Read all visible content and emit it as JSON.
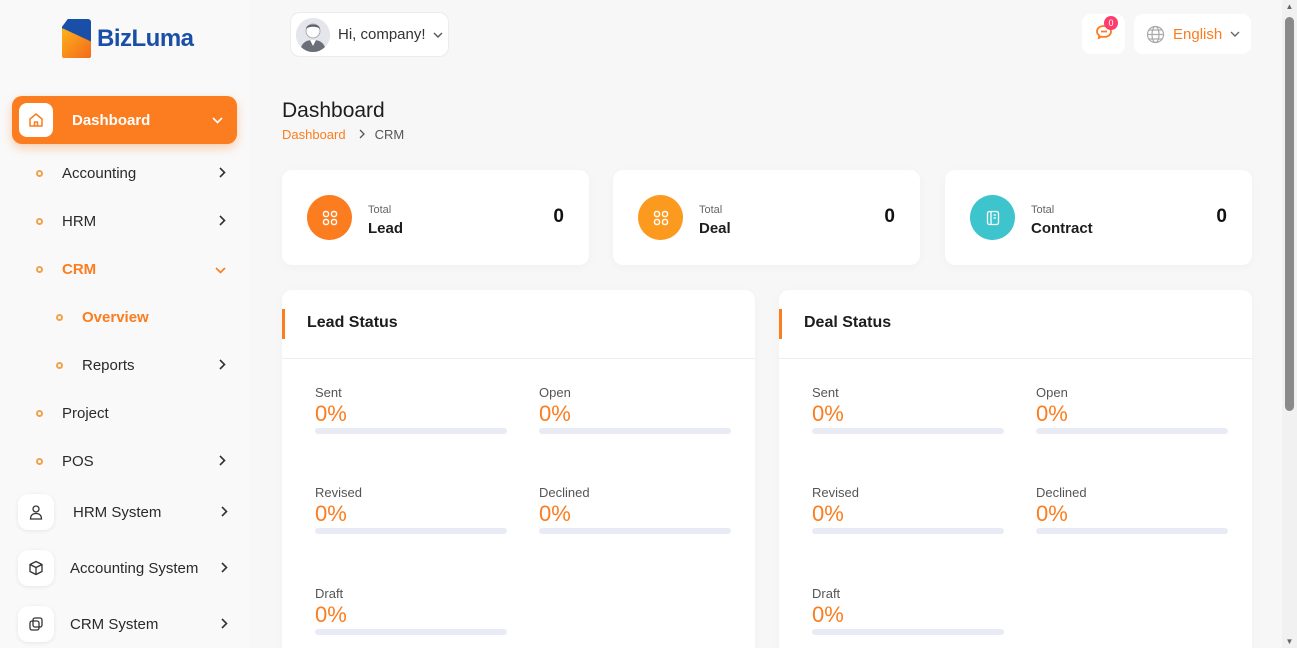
{
  "brand": {
    "name": "BizLuma"
  },
  "header": {
    "greeting": "Hi, company!",
    "notification_count": "0",
    "language": "English"
  },
  "sidebar": {
    "main": {
      "label": "Dashboard",
      "icon": "home-icon"
    },
    "items": [
      {
        "label": "Accounting",
        "has_children": true
      },
      {
        "label": "HRM",
        "has_children": true
      },
      {
        "label": "CRM",
        "expanded": true,
        "active": true
      },
      {
        "label": "Overview",
        "active": true,
        "level": 2
      },
      {
        "label": "Reports",
        "has_children": true,
        "level": 2
      },
      {
        "label": "Project",
        "has_children": false
      },
      {
        "label": "POS",
        "has_children": true
      }
    ],
    "systems": [
      {
        "label": "HRM System",
        "icon": "user-icon"
      },
      {
        "label": "Accounting System",
        "icon": "box-icon"
      },
      {
        "label": "CRM System",
        "icon": "layers-icon"
      }
    ]
  },
  "page": {
    "title": "Dashboard",
    "breadcrumb": [
      "Dashboard",
      "CRM"
    ]
  },
  "stats": [
    {
      "small": "Total",
      "label": "Lead",
      "value": "0",
      "color": "#fb7d1f",
      "icon": "grid-icon"
    },
    {
      "small": "Total",
      "label": "Deal",
      "value": "0",
      "color": "#fb9a1f",
      "icon": "grid-icon"
    },
    {
      "small": "Total",
      "label": "Contract",
      "value": "0",
      "color": "#3dc4cc",
      "icon": "notebook-icon"
    }
  ],
  "lead_status": {
    "title": "Lead Status",
    "metrics": [
      {
        "label": "Sent",
        "value": "0%",
        "percent": 0
      },
      {
        "label": "Open",
        "value": "0%",
        "percent": 0
      },
      {
        "label": "Revised",
        "value": "0%",
        "percent": 0
      },
      {
        "label": "Declined",
        "value": "0%",
        "percent": 0
      },
      {
        "label": "Draft",
        "value": "0%",
        "percent": 0
      }
    ]
  },
  "deal_status": {
    "title": "Deal Status",
    "metrics": [
      {
        "label": "Sent",
        "value": "0%",
        "percent": 0
      },
      {
        "label": "Open",
        "value": "0%",
        "percent": 0
      },
      {
        "label": "Revised",
        "value": "0%",
        "percent": 0
      },
      {
        "label": "Declined",
        "value": "0%",
        "percent": 0
      },
      {
        "label": "Draft",
        "value": "0%",
        "percent": 0
      }
    ]
  },
  "colors": {
    "accent": "#fb7d1f",
    "brand_blue": "#1a4fa8"
  }
}
